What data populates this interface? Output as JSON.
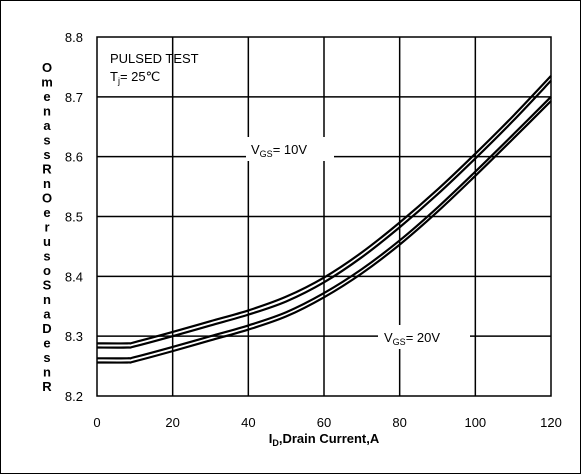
{
  "chart_data": {
    "type": "line",
    "xlabel": "I",
    "xlabel_sub": "D",
    "xlabel_rest": ",Drain Current,A",
    "ylabel_chars": [
      "O",
      "m",
      "e",
      "n",
      "a",
      "s",
      "s",
      "R",
      "n",
      "O",
      "e",
      "r",
      "u",
      "s",
      "o",
      "S",
      "n",
      "a",
      "D",
      "e",
      "s",
      "n",
      "R"
    ],
    "xlim": [
      0,
      120
    ],
    "ylim": [
      8.2,
      8.8
    ],
    "x_ticks": [
      "0",
      "20",
      "40",
      "60",
      "80",
      "100",
      "120"
    ],
    "y_ticks": [
      "8.2",
      "8.3",
      "8.4",
      "8.5",
      "8.6",
      "8.7",
      "8.8"
    ],
    "grid": true,
    "annotations": {
      "pulsed": "PULSED TEST",
      "tj_main": "T",
      "tj_sub": "j",
      "tj_rest": "= 25℃",
      "vgs10_main": "V",
      "vgs10_sub": "GS",
      "vgs10_rest": "= 10V",
      "vgs20_main": "V",
      "vgs20_sub": "GS",
      "vgs20_rest": "= 20V"
    },
    "series": [
      {
        "x": [
          0,
          8,
          10,
          20,
          30,
          40,
          50,
          60,
          70,
          80,
          90,
          100,
          110,
          120
        ],
        "upper": [
          8.288,
          8.288,
          8.29,
          8.307,
          8.325,
          8.343,
          8.366,
          8.398,
          8.44,
          8.49,
          8.545,
          8.605,
          8.668,
          8.735
        ],
        "lower": [
          8.281,
          8.281,
          8.283,
          8.3,
          8.318,
          8.336,
          8.358,
          8.39,
          8.432,
          8.482,
          8.537,
          8.597,
          8.66,
          8.727
        ]
      },
      {
        "x": [
          0,
          8,
          10,
          20,
          30,
          40,
          50,
          60,
          70,
          80,
          90,
          100,
          110,
          120
        ],
        "upper": [
          8.263,
          8.263,
          8.265,
          8.282,
          8.3,
          8.318,
          8.34,
          8.372,
          8.412,
          8.46,
          8.515,
          8.575,
          8.637,
          8.7
        ],
        "lower": [
          8.256,
          8.256,
          8.258,
          8.275,
          8.293,
          8.311,
          8.333,
          8.365,
          8.405,
          8.453,
          8.508,
          8.568,
          8.63,
          8.693
        ]
      }
    ]
  }
}
